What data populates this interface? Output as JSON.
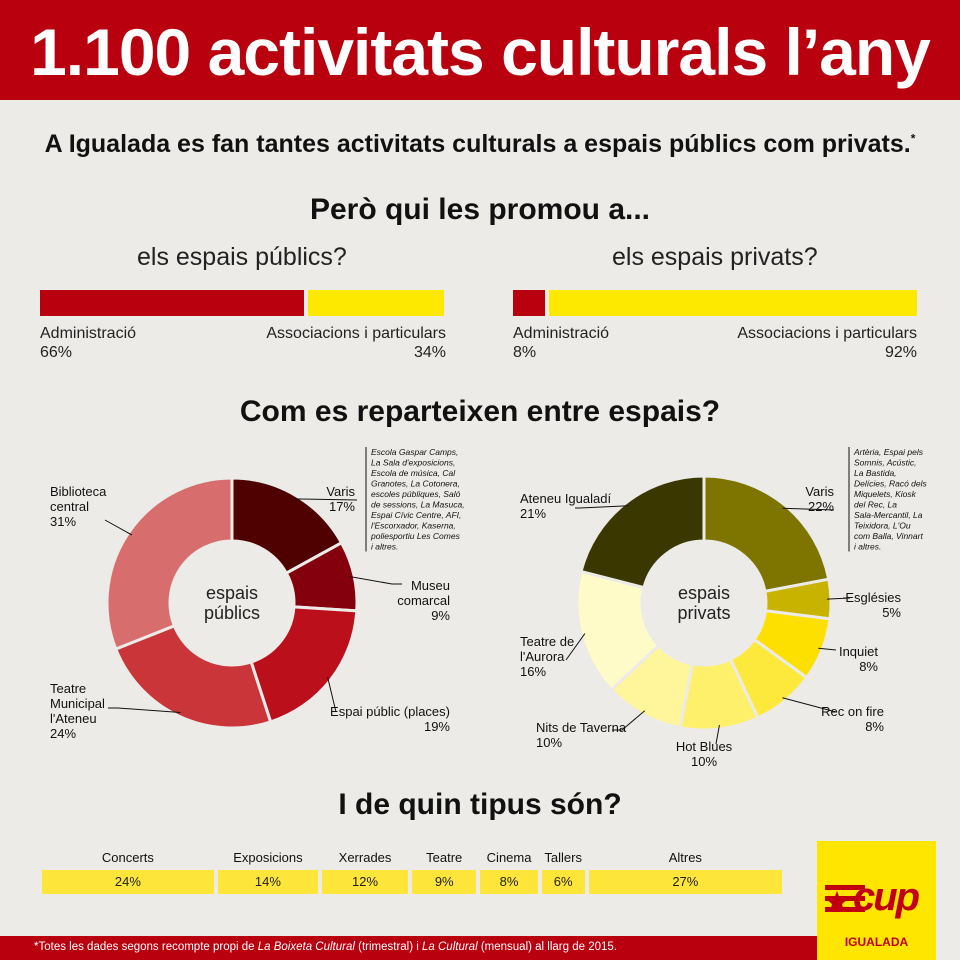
{
  "title": "1.100 activitats culturals l’any",
  "subtitle": "A Igualada es fan tantes activitats culturals a espais públics com privats.",
  "subtitle_mark": "*",
  "section1": "Però qui les promou a...",
  "section2": "Com es reparteixen entre espais?",
  "section3": "I de quin tipus són?",
  "footnote": {
    "a": "*Totes les dades segons recompte propi de ",
    "b": "La Boixeta Cultural",
    "c": " (trimestral) i ",
    "d": "La Cultural",
    "e": " (mensual) al llarg de 2015."
  },
  "logo": {
    "text": "cup",
    "city": "IGUALADA"
  },
  "chart_data": [
    {
      "type": "bar",
      "title": "els espais públics?",
      "categories": [
        "Administració",
        "Associacions i particulars"
      ],
      "values": [
        66,
        34
      ],
      "value_labels": [
        "66%",
        "34%"
      ],
      "colors": [
        "#b8000f",
        "#fde900"
      ]
    },
    {
      "type": "bar",
      "title": "els espais privats?",
      "categories": [
        "Administració",
        "Associacions i particulars"
      ],
      "values": [
        8,
        92
      ],
      "value_labels": [
        "8%",
        "92%"
      ],
      "colors": [
        "#b8000f",
        "#fde900"
      ]
    },
    {
      "type": "pie",
      "center_label": [
        "espais",
        "públics"
      ],
      "slices": [
        {
          "label": [
            "Varis"
          ],
          "value": 17,
          "value_label": "17%",
          "color": "#4f0000"
        },
        {
          "label": [
            "Museu",
            "comarcal"
          ],
          "value": 9,
          "value_label": "9%",
          "color": "#85000d"
        },
        {
          "label": [
            "Espai públic (places)"
          ],
          "value": 19,
          "value_label": "19%",
          "color": "#bb0f1b"
        },
        {
          "label": [
            "Teatre",
            "Municipal",
            "l'Ateneu"
          ],
          "value": 24,
          "value_label": "24%",
          "color": "#c93539"
        },
        {
          "label": [
            "Biblioteca",
            "central"
          ],
          "value": 31,
          "value_label": "31%",
          "color": "#d86d6d"
        }
      ],
      "note": [
        "Escola Gaspar Camps,",
        "La Sala d'exposicions,",
        "Escola de música, Cal",
        "Granotes, La Cotonera,",
        "escoles públiques, Saló",
        "de sessions, La Masuca,",
        "Espai Cívic Centre, AFI,",
        "l'Escorxador, Kaserna,",
        "poliesportiu Les Comes",
        "i altres."
      ]
    },
    {
      "type": "pie",
      "center_label": [
        "espais",
        "privats"
      ],
      "slices": [
        {
          "label": [
            "Varis"
          ],
          "value": 22,
          "value_label": "22%",
          "color": "#7d7500"
        },
        {
          "label": [
            "Esglésies"
          ],
          "value": 5,
          "value_label": "5%",
          "color": "#c7b300"
        },
        {
          "label": [
            "Inquiet"
          ],
          "value": 8,
          "value_label": "8%",
          "color": "#fde000"
        },
        {
          "label": [
            "Rec on fire"
          ],
          "value": 8,
          "value_label": "8%",
          "color": "#fde93c"
        },
        {
          "label": [
            "Hot Blues"
          ],
          "value": 10,
          "value_label": "10%",
          "color": "#fff06c"
        },
        {
          "label": [
            "Nits de Taverna"
          ],
          "value": 10,
          "value_label": "10%",
          "color": "#fff59b"
        },
        {
          "label": [
            "Teatre de",
            "l'Aurora"
          ],
          "value": 16,
          "value_label": "16%",
          "color": "#fffbc8"
        },
        {
          "label": [
            "Ateneu Igualadí"
          ],
          "value": 21,
          "value_label": "21%",
          "color": "#3a3800"
        }
      ],
      "note": [
        "Artèria, Espai pels",
        "Somnis, Acústic,",
        "La Bastida,",
        "Delícies, Racó dels",
        "Miquelets, Kiosk",
        "del Rec, La",
        "Sala-Mercantil, La",
        "Teixidora, L'Ou",
        "com Balla, Vinnart",
        "i altres."
      ]
    },
    {
      "type": "bar",
      "title": "I de quin tipus són?",
      "categories": [
        "Concerts",
        "Exposicions",
        "Xerrades",
        "Teatre",
        "Cinema",
        "Tallers",
        "Altres"
      ],
      "values": [
        24,
        14,
        12,
        9,
        8,
        6,
        27
      ],
      "value_labels": [
        "24%",
        "14%",
        "12%",
        "9%",
        "8%",
        "6%",
        "27%"
      ],
      "color": "#fde53a"
    }
  ]
}
